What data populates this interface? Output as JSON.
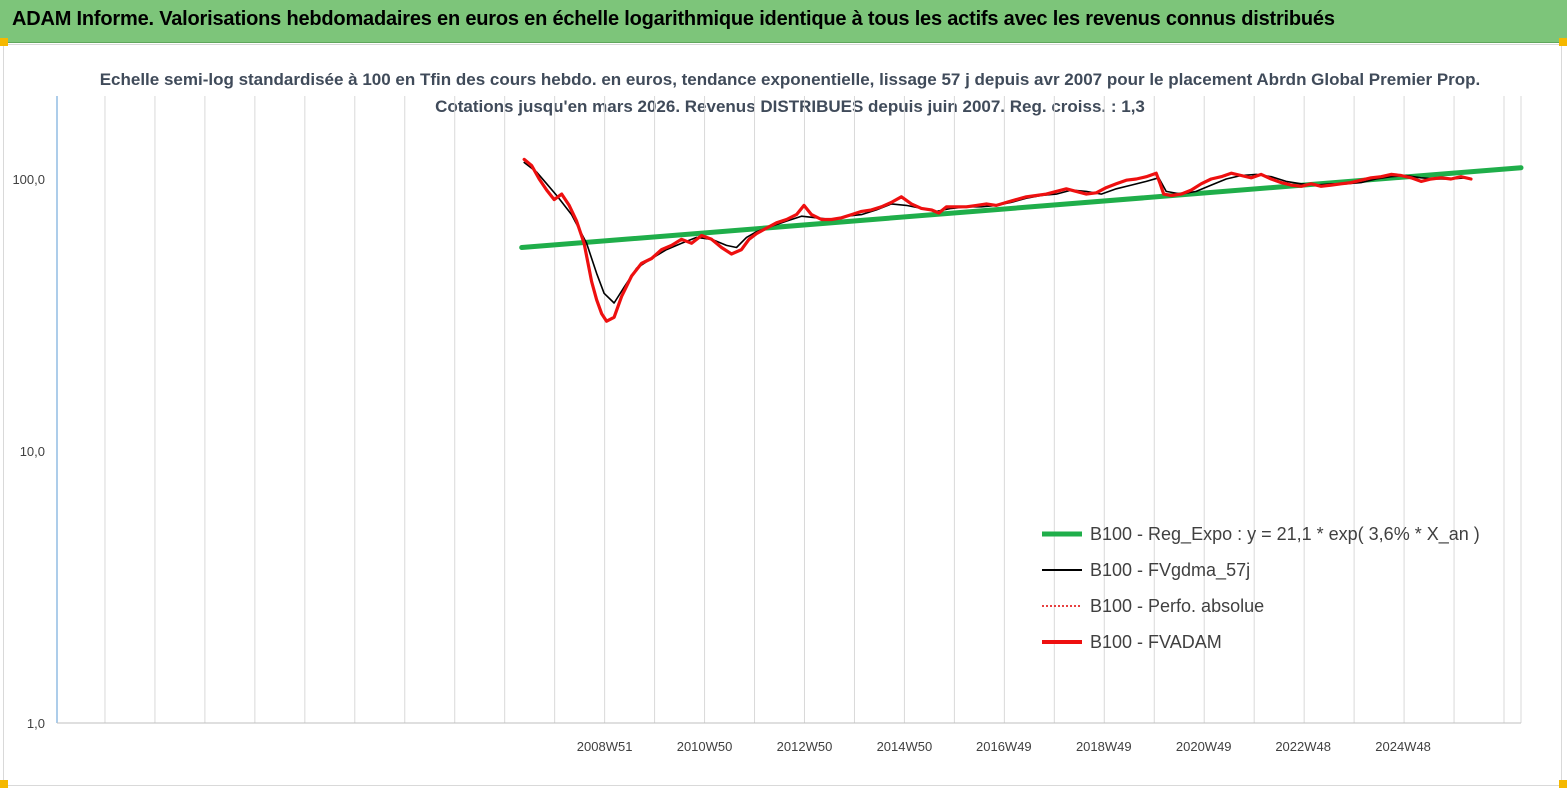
{
  "banner": {
    "title": "ADAM Informe. Valorisations hebdomadaires en euros en échelle logarithmique identique à tous les actifs avec les revenus connus distribués"
  },
  "chart_data": {
    "type": "line",
    "title": "Echelle semi-log standardisée à 100 en Tfin des cours hebdo. en euros, tendance exponentielle, lissage 57 j depuis avr 2007 pour le placement Abrdn Global Premier Prop. Cotations jusqu'en mars 2026. Revenus DISTRIBUES depuis juin 2007. Reg. croiss. : 1,3",
    "y_scale": "log",
    "ylim": [
      1,
      200
    ],
    "y_ticks": [
      {
        "value": 1,
        "label": "1,0"
      },
      {
        "value": 10,
        "label": "10,0"
      },
      {
        "value": 100,
        "label": "100,0"
      }
    ],
    "xlim": [
      1998.0,
      2027.3
    ],
    "x_ticks": [
      {
        "value": 2008.96,
        "label": "2008W51"
      },
      {
        "value": 2010.96,
        "label": "2010W50"
      },
      {
        "value": 2012.96,
        "label": "2012W50"
      },
      {
        "value": 2014.96,
        "label": "2014W50"
      },
      {
        "value": 2016.95,
        "label": "2016W49"
      },
      {
        "value": 2018.95,
        "label": "2018W49"
      },
      {
        "value": 2020.95,
        "label": "2020W49"
      },
      {
        "value": 2022.94,
        "label": "2022W48"
      },
      {
        "value": 2024.94,
        "label": "2024W48"
      }
    ],
    "grid": {
      "vertical": true,
      "horizontal": false
    },
    "legend_position": "bottom-right",
    "series": [
      {
        "name": "B100 - Reg_Expo : y = 21,1 * exp( 3,6% *  X_an )",
        "color": "#1fae4a",
        "style": "thick",
        "x": [
          2007.3,
          2027.3
        ],
        "y": [
          56,
          110
        ]
      },
      {
        "name": "B100 - FVgdma_57j",
        "color": "#000000",
        "style": "thin",
        "x": [
          2007.35,
          2007.6,
          2007.8,
          2008.0,
          2008.3,
          2008.6,
          2008.8,
          2008.95,
          2009.15,
          2009.35,
          2009.6,
          2009.9,
          2010.2,
          2010.5,
          2010.8,
          2011.1,
          2011.4,
          2011.6,
          2011.8,
          2012.0,
          2012.3,
          2012.6,
          2012.9,
          2013.2,
          2013.5,
          2013.8,
          2014.1,
          2014.4,
          2014.7,
          2015.0,
          2015.3,
          2015.6,
          2015.9,
          2016.2,
          2016.5,
          2016.8,
          2017.1,
          2017.4,
          2017.7,
          2018.0,
          2018.3,
          2018.6,
          2018.9,
          2019.2,
          2019.5,
          2019.8,
          2020.05,
          2020.2,
          2020.5,
          2020.8,
          2021.1,
          2021.4,
          2021.7,
          2022.0,
          2022.3,
          2022.6,
          2022.9,
          2023.2,
          2023.5,
          2023.8,
          2024.1,
          2024.4,
          2024.7,
          2025.0,
          2025.3,
          2025.6,
          2025.9,
          2026.2
        ],
        "y": [
          115,
          106,
          96,
          87,
          74,
          58,
          45,
          38,
          35,
          40,
          47,
          51,
          55,
          58,
          61,
          60,
          57,
          56,
          61,
          64,
          67,
          70,
          73,
          72,
          71,
          73,
          74,
          77,
          81,
          80,
          78,
          76,
          78,
          79,
          79,
          80,
          82,
          85,
          87,
          88,
          91,
          90,
          88,
          92,
          95,
          98,
          101,
          90,
          88,
          90,
          95,
          100,
          103,
          104,
          102,
          98,
          96,
          95,
          96,
          96,
          97,
          100,
          102,
          103,
          101,
          100,
          100,
          101
        ]
      },
      {
        "name": "B100 - Perfo. absolue",
        "color": "#e00000",
        "style": "dotted",
        "x": [],
        "y": []
      },
      {
        "name": "B100 - FVADAM",
        "color": "#ee1010",
        "style": "thick",
        "x": [
          2007.35,
          2007.5,
          2007.65,
          2007.8,
          2007.95,
          2008.1,
          2008.25,
          2008.4,
          2008.55,
          2008.7,
          2008.8,
          2008.9,
          2009.0,
          2009.15,
          2009.3,
          2009.5,
          2009.7,
          2009.9,
          2010.1,
          2010.3,
          2010.5,
          2010.7,
          2010.9,
          2011.1,
          2011.3,
          2011.5,
          2011.7,
          2011.85,
          2012.0,
          2012.2,
          2012.4,
          2012.6,
          2012.8,
          2012.95,
          2013.1,
          2013.3,
          2013.5,
          2013.7,
          2013.9,
          2014.1,
          2014.3,
          2014.5,
          2014.7,
          2014.9,
          2015.1,
          2015.3,
          2015.5,
          2015.65,
          2015.8,
          2016.0,
          2016.2,
          2016.4,
          2016.6,
          2016.8,
          2017.0,
          2017.2,
          2017.4,
          2017.6,
          2017.8,
          2018.0,
          2018.2,
          2018.4,
          2018.6,
          2018.8,
          2019.0,
          2019.2,
          2019.4,
          2019.6,
          2019.8,
          2020.0,
          2020.08,
          2020.15,
          2020.3,
          2020.5,
          2020.7,
          2020.9,
          2021.1,
          2021.3,
          2021.5,
          2021.7,
          2021.9,
          2022.1,
          2022.3,
          2022.5,
          2022.7,
          2022.9,
          2023.1,
          2023.3,
          2023.5,
          2023.7,
          2023.9,
          2024.1,
          2024.3,
          2024.5,
          2024.7,
          2024.9,
          2025.1,
          2025.3,
          2025.5,
          2025.7,
          2025.9,
          2026.1,
          2026.3
        ],
        "y": [
          118,
          112,
          100,
          91,
          84,
          88,
          80,
          70,
          58,
          42,
          36,
          32,
          30,
          31,
          37,
          44,
          49,
          51,
          55,
          57,
          60,
          58,
          62,
          60,
          56,
          53,
          55,
          60,
          63,
          66,
          69,
          71,
          74,
          80,
          74,
          71,
          71,
          72,
          74,
          76,
          77,
          79,
          82,
          86,
          81,
          78,
          77,
          75,
          79,
          79,
          79,
          80,
          81,
          80,
          82,
          84,
          86,
          87,
          88,
          90,
          92,
          90,
          88,
          89,
          93,
          96,
          99,
          100,
          102,
          105,
          96,
          88,
          87,
          88,
          91,
          96,
          100,
          102,
          105,
          103,
          101,
          104,
          100,
          97,
          95,
          94,
          96,
          94,
          95,
          96,
          97,
          99,
          101,
          102,
          104,
          103,
          101,
          98,
          100,
          101,
          100,
          102,
          100
        ]
      }
    ]
  }
}
